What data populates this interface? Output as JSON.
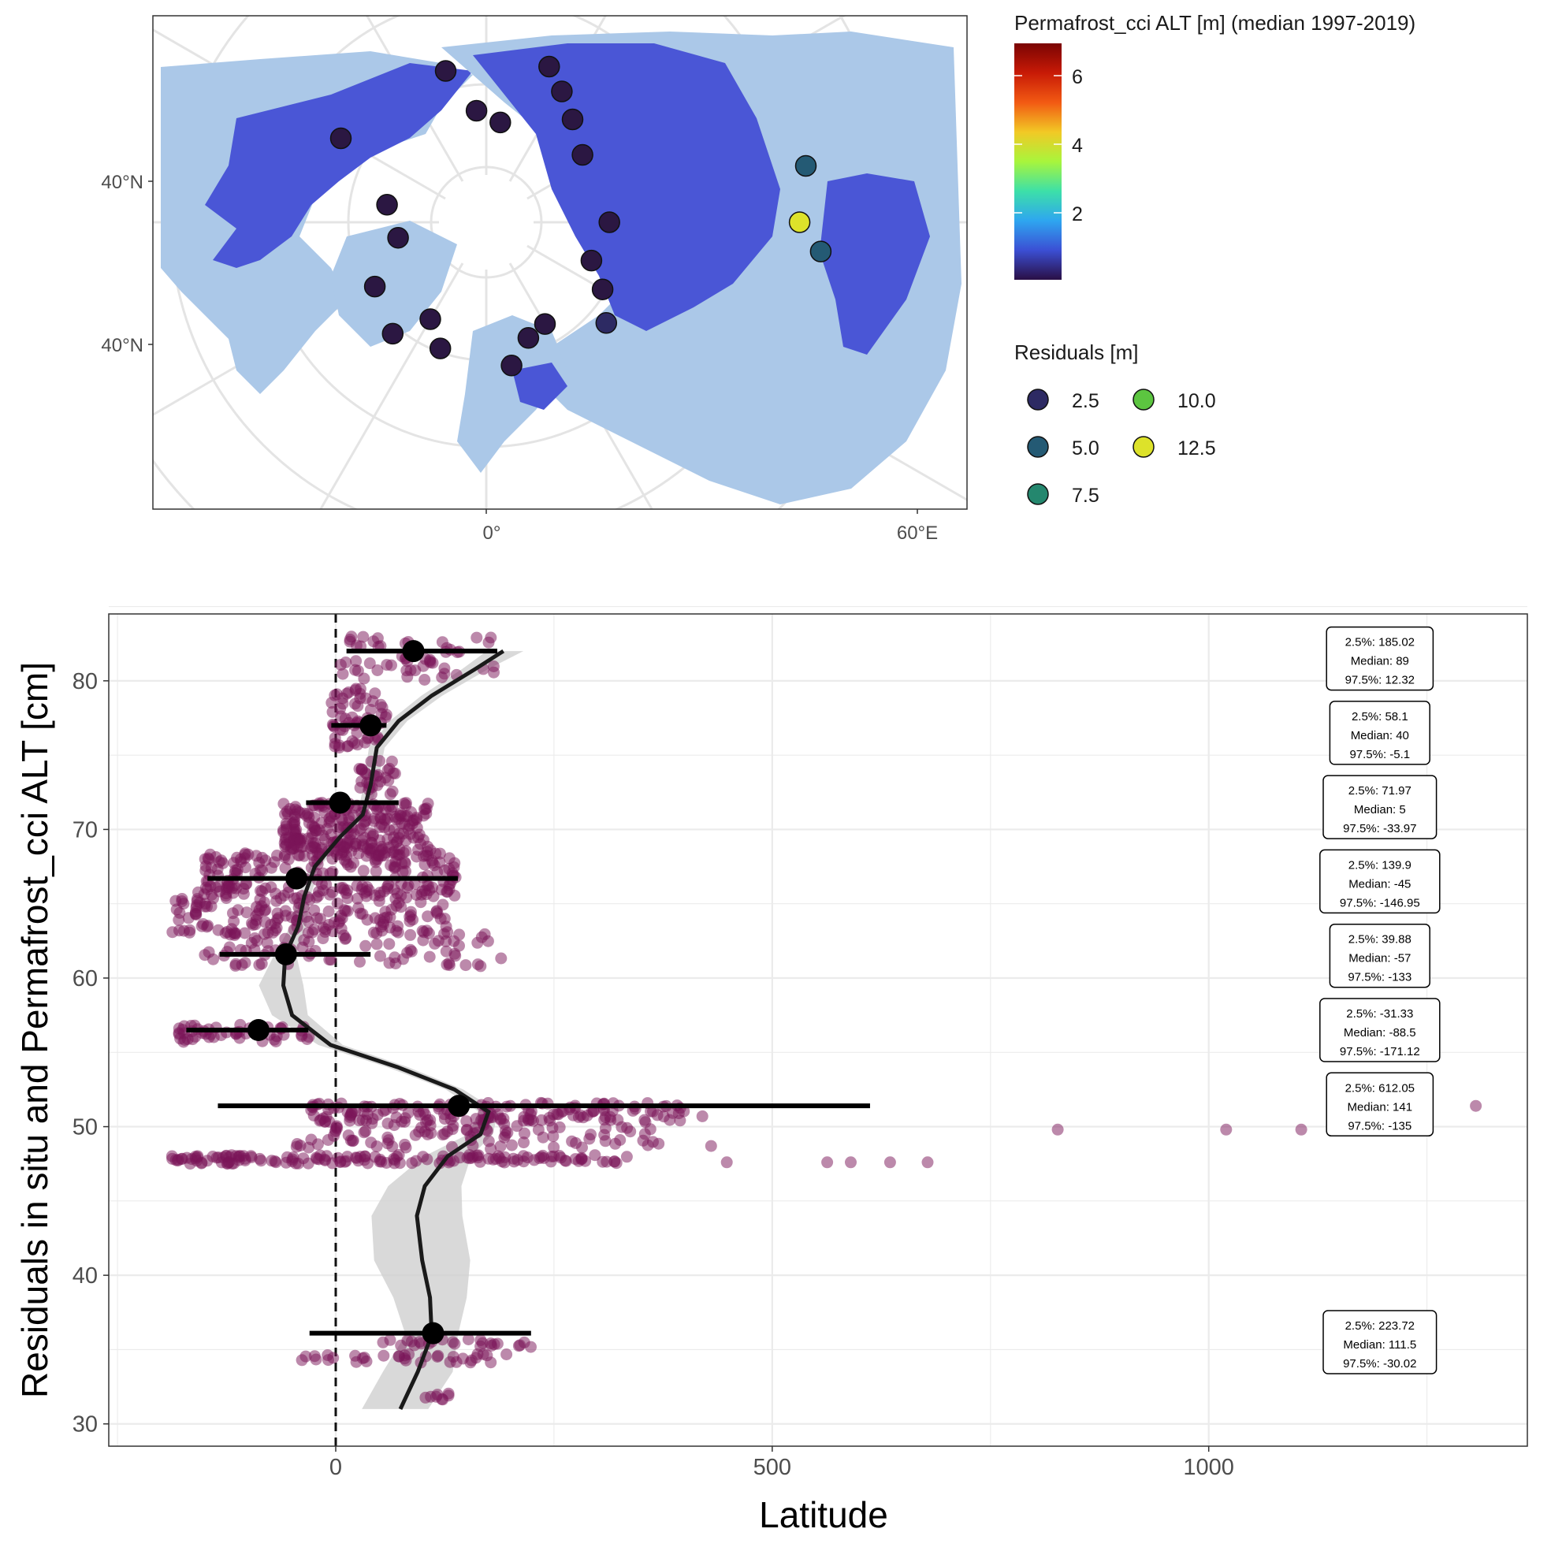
{
  "colors": {
    "ocean": "#abc8e8",
    "land_base": "#4a56d6",
    "point_fill": "#7a1358",
    "grid": "#e6e6e6",
    "axis_text": "#4d4d4d",
    "smooth_ribbon": "#d3d3d3"
  },
  "map": {
    "lat_labels": [
      "40°N",
      "40°N"
    ],
    "lon_labels": [
      "0°",
      "60°E"
    ],
    "legend_alt": {
      "title": "Permafrost_cci ALT [m] (median 1997-2019)",
      "ticks": [
        "6",
        "4",
        "2"
      ],
      "colors": [
        "#2a0f45",
        "#3b4fd4",
        "#2ea6f0",
        "#3de0a8",
        "#a8f53c",
        "#f2c925",
        "#f25a13",
        "#c81a06",
        "#7a0403"
      ]
    },
    "legend_resid": {
      "title": "Residuals [m]",
      "items": [
        {
          "label": "2.5",
          "color": "#2d2a63"
        },
        {
          "label": "10.0",
          "color": "#5cc540"
        },
        {
          "label": "5.0",
          "color": "#245a74"
        },
        {
          "label": "12.5",
          "color": "#dde22a"
        },
        {
          "label": "7.5",
          "color": "#24876e"
        }
      ]
    },
    "sites": [
      {
        "lon": -15,
        "lat": 62,
        "v": 1
      },
      {
        "lon": -5,
        "lat": 70,
        "v": 1
      },
      {
        "lon": 8,
        "lat": 72,
        "v": 1
      },
      {
        "lon": 22,
        "lat": 60,
        "v": 1
      },
      {
        "lon": 30,
        "lat": 63,
        "v": 1
      },
      {
        "lon": 40,
        "lat": 66,
        "v": 1
      },
      {
        "lon": 55,
        "lat": 69,
        "v": 1
      },
      {
        "lon": 90,
        "lat": 68,
        "v": 1
      },
      {
        "lon": 110,
        "lat": 70,
        "v": 1
      },
      {
        "lon": 120,
        "lat": 66,
        "v": 1
      },
      {
        "lon": 130,
        "lat": 62,
        "v": 2
      },
      {
        "lon": 150,
        "lat": 69,
        "v": 1
      },
      {
        "lon": 160,
        "lat": 68,
        "v": 1
      },
      {
        "lon": 170,
        "lat": 64,
        "v": 1
      },
      {
        "lon": -150,
        "lat": 70,
        "v": 1
      },
      {
        "lon": -160,
        "lat": 66,
        "v": 1
      },
      {
        "lon": -140,
        "lat": 64,
        "v": 1
      },
      {
        "lon": -120,
        "lat": 67,
        "v": 1
      },
      {
        "lon": -100,
        "lat": 74,
        "v": 1
      },
      {
        "lon": -80,
        "lat": 72,
        "v": 1
      },
      {
        "lon": -60,
        "lat": 60,
        "v": 1
      },
      {
        "lon": 80,
        "lat": 32,
        "v": 4
      },
      {
        "lon": 90,
        "lat": 34,
        "v": 12.5
      },
      {
        "lon": 95,
        "lat": 30,
        "v": 5
      }
    ]
  },
  "chart_data": {
    "type": "scatter",
    "title": "",
    "xlabel": "Latitude",
    "ylabel": "Residuals in situ and Permafrost_cci ALT [cm]",
    "xlim": [
      -260,
      1365
    ],
    "ylim": [
      28.5,
      84.5
    ],
    "x_ticks": [
      0,
      500,
      1000
    ],
    "y_ticks": [
      30,
      40,
      50,
      60,
      70,
      80
    ],
    "grid": true,
    "ref_line_x": 0,
    "bands": [
      {
        "y": 82,
        "median": 89,
        "low": 12.32,
        "high": 185.02,
        "label": {
          "p2_5": "2.5%:  185.02",
          "median": "Median:  89",
          "p97_5": "97.5%:  12.32"
        }
      },
      {
        "y": 77,
        "median": 40,
        "low": -5.1,
        "high": 58.1,
        "label": {
          "p2_5": "2.5%:  58.1",
          "median": "Median:  40",
          "p97_5": "97.5%:  -5.1"
        }
      },
      {
        "y": 71.8,
        "median": 5,
        "low": -33.97,
        "high": 71.97,
        "label": {
          "p2_5": "2.5%:  71.97",
          "median": "Median:  5",
          "p97_5": "97.5%:  -33.97"
        }
      },
      {
        "y": 66.7,
        "median": -45,
        "low": -146.95,
        "high": 139.9,
        "label": {
          "p2_5": "2.5%:  139.9",
          "median": "Median:  -45",
          "p97_5": "97.5%:  -146.95"
        }
      },
      {
        "y": 61.6,
        "median": -57,
        "low": -133,
        "high": 39.88,
        "label": {
          "p2_5": "2.5%:  39.88",
          "median": "Median:  -57",
          "p97_5": "97.5%:  -133"
        }
      },
      {
        "y": 56.5,
        "median": -88.5,
        "low": -171.12,
        "high": -31.33,
        "label": {
          "p2_5": "2.5%:  -31.33",
          "median": "Median:  -88.5",
          "p97_5": "97.5%:  -171.12"
        }
      },
      {
        "y": 51.4,
        "median": 141,
        "low": -135,
        "high": 612.05,
        "label": {
          "p2_5": "2.5%:  612.05",
          "median": "Median:  141",
          "p97_5": "97.5%:  -135"
        }
      },
      {
        "y": 36.1,
        "median": 111.5,
        "low": -30.02,
        "high": 223.72,
        "label": {
          "p2_5": "2.5%:  223.72",
          "median": "Median:  111.5",
          "p97_5": "97.5%:  -30.02"
        }
      }
    ],
    "smooth": [
      [
        192,
        82
      ],
      [
        160,
        80.8
      ],
      [
        110,
        79
      ],
      [
        72,
        77.3
      ],
      [
        47,
        75.5
      ],
      [
        40,
        73
      ],
      [
        31,
        71
      ],
      [
        5,
        69.5
      ],
      [
        -24,
        67.5
      ],
      [
        -36,
        65.5
      ],
      [
        -43,
        63.5
      ],
      [
        -58,
        61.5
      ],
      [
        -60,
        59.5
      ],
      [
        -50,
        57.5
      ],
      [
        -6,
        55.5
      ],
      [
        71,
        54
      ],
      [
        136,
        52.5
      ],
      [
        175,
        51
      ],
      [
        166,
        49.5
      ],
      [
        128,
        48
      ],
      [
        102,
        46
      ],
      [
        93,
        44
      ],
      [
        99,
        41
      ],
      [
        108,
        38.5
      ],
      [
        110,
        36
      ],
      [
        94,
        33.5
      ],
      [
        74,
        31
      ]
    ],
    "ribbon": [
      [
        192,
        82,
        19,
        23
      ],
      [
        160,
        80.8,
        15,
        15
      ],
      [
        110,
        79,
        12,
        12
      ],
      [
        72,
        77.3,
        10,
        10
      ],
      [
        47,
        75.5,
        9,
        9
      ],
      [
        40,
        73,
        8,
        8
      ],
      [
        31,
        71,
        6,
        6
      ],
      [
        5,
        69.5,
        5,
        5
      ],
      [
        -24,
        67.5,
        6,
        6
      ],
      [
        -36,
        65.5,
        7,
        7
      ],
      [
        -43,
        63.5,
        9,
        9
      ],
      [
        -58,
        61.5,
        13,
        13
      ],
      [
        -60,
        59.5,
        28,
        23
      ],
      [
        -50,
        57.5,
        23,
        18
      ],
      [
        -6,
        55.5,
        14,
        14
      ],
      [
        71,
        54,
        12,
        12
      ],
      [
        136,
        52.5,
        10,
        10
      ],
      [
        175,
        51,
        11,
        11
      ],
      [
        166,
        49.5,
        14,
        14
      ],
      [
        128,
        48,
        27,
        27
      ],
      [
        102,
        46,
        42,
        42
      ],
      [
        93,
        44,
        52,
        52
      ],
      [
        99,
        41,
        55,
        55
      ],
      [
        108,
        38.5,
        42,
        42
      ],
      [
        110,
        36,
        30,
        30
      ],
      [
        94,
        33.5,
        40,
        40
      ],
      [
        74,
        31,
        44,
        32
      ]
    ],
    "outliers": [
      {
        "x": 420,
        "y": 50.7
      },
      {
        "x": 430,
        "y": 48.7
      },
      {
        "x": 448,
        "y": 47.6
      },
      {
        "x": 563,
        "y": 47.6
      },
      {
        "x": 590,
        "y": 47.6
      },
      {
        "x": 635,
        "y": 47.6
      },
      {
        "x": 678,
        "y": 47.6
      },
      {
        "x": 827,
        "y": 49.8
      },
      {
        "x": 1020,
        "y": 49.8
      },
      {
        "x": 1106,
        "y": 49.8
      },
      {
        "x": 1306,
        "y": 51.4
      }
    ]
  }
}
